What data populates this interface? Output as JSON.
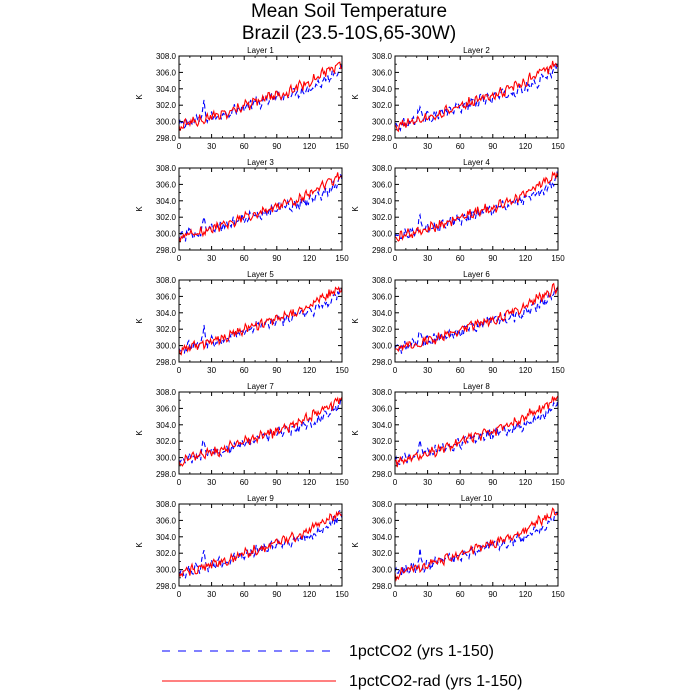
{
  "header": {
    "title_line1": "Mean Soil Temperature",
    "title_line2": "Brazil (23.5-10S,65-30W)"
  },
  "colors": {
    "series_1pctCO2": "#0000ff",
    "series_1pctCO2_rad": "#ff0000",
    "axis": "#000000"
  },
  "legend": {
    "items": [
      {
        "label": "1pctCO2 (yrs 1-150)",
        "color": "#0000ff",
        "style": "dashed"
      },
      {
        "label": "1pctCO2-rad (yrs 1-150)",
        "color": "#ff0000",
        "style": "solid"
      }
    ]
  },
  "chart_data": {
    "type": "line",
    "layout": "5 rows x 2 columns",
    "xlabel": "",
    "ylabel": "K",
    "xlim": [
      0,
      150
    ],
    "ylim": [
      298,
      308
    ],
    "xticks": [
      "0",
      "30",
      "60",
      "90",
      "120",
      "150"
    ],
    "yticks": [
      "298.0",
      "300.0",
      "302.0",
      "304.0",
      "306.0",
      "308.0"
    ],
    "grid": false,
    "legend_position": "bottom",
    "panels": [
      {
        "title": "Layer 1"
      },
      {
        "title": "Layer 2"
      },
      {
        "title": "Layer 3"
      },
      {
        "title": "Layer 4"
      },
      {
        "title": "Layer 5"
      },
      {
        "title": "Layer 6"
      },
      {
        "title": "Layer 7"
      },
      {
        "title": "Layer 8"
      },
      {
        "title": "Layer 9"
      },
      {
        "title": "Layer 10"
      }
    ],
    "series_shape": {
      "x": [
        0,
        10,
        20,
        23,
        26,
        30,
        40,
        50,
        60,
        70,
        80,
        90,
        100,
        110,
        120,
        130,
        140,
        150
      ],
      "1pctCO2": [
        299.5,
        299.9,
        300.3,
        301.9,
        300.4,
        300.5,
        300.9,
        301.3,
        301.8,
        302.2,
        302.6,
        303.0,
        303.3,
        303.6,
        304.0,
        304.7,
        305.6,
        306.8
      ],
      "1pctCO2-rad": [
        299.3,
        299.9,
        300.2,
        300.3,
        300.4,
        300.7,
        300.9,
        301.5,
        301.9,
        302.4,
        302.8,
        303.2,
        303.6,
        304.2,
        304.9,
        305.8,
        306.3,
        307.2
      ]
    },
    "series": [
      {
        "name": "1pctCO2 (yrs 1-150)",
        "style": "dashed"
      },
      {
        "name": "1pctCO2-rad (yrs 1-150)",
        "style": "solid"
      }
    ]
  }
}
